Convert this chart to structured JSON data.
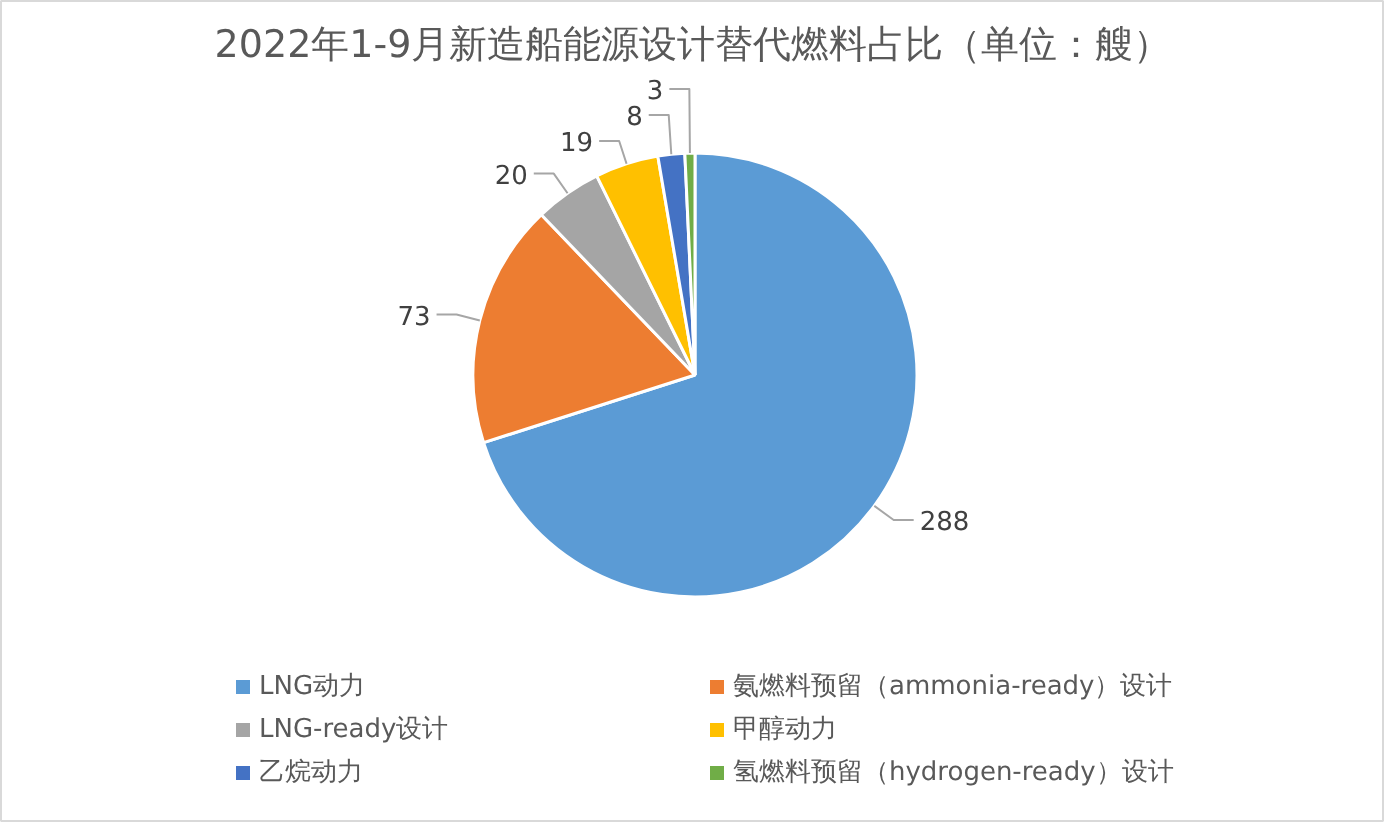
{
  "chart_data": {
    "type": "pie",
    "title": "2022年1-9月新造船能源设计替代燃料占比（单位：艘）",
    "categories": [
      "LNG动力",
      "氨燃料预留（ammonia-ready）设计",
      "LNG-ready设计",
      "甲醇动力",
      "乙烷动力",
      "氢燃料预留（hydrogen-ready）设计"
    ],
    "values": [
      288,
      73,
      20,
      19,
      8,
      3
    ],
    "colors": [
      "#5b9bd5",
      "#ed7d31",
      "#a5a5a5",
      "#ffc000",
      "#4472c4",
      "#70ad47"
    ],
    "data_labels": true,
    "legend": "bottom"
  }
}
